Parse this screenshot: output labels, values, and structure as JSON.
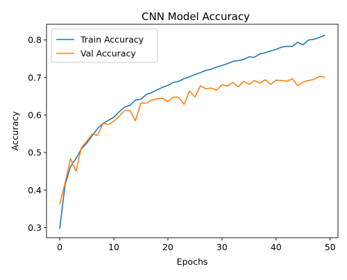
{
  "chart_data": {
    "type": "line",
    "title": "CNN Model Accuracy",
    "xlabel": "Epochs",
    "ylabel": "Accuracy",
    "xlim": [
      -2.45,
      51.45
    ],
    "ylim": [
      0.273,
      0.842
    ],
    "xticks": [
      0,
      10,
      20,
      30,
      40,
      50
    ],
    "yticks": [
      0.3,
      0.4,
      0.5,
      0.6,
      0.7,
      0.8
    ],
    "grid": false,
    "legend_position": "top-left",
    "x": [
      0,
      1,
      2,
      3,
      4,
      5,
      6,
      7,
      8,
      9,
      10,
      11,
      12,
      13,
      14,
      15,
      16,
      17,
      18,
      19,
      20,
      21,
      22,
      23,
      24,
      25,
      26,
      27,
      28,
      29,
      30,
      31,
      32,
      33,
      34,
      35,
      36,
      37,
      38,
      39,
      40,
      41,
      42,
      43,
      44,
      45,
      46,
      47,
      48,
      49
    ],
    "series": [
      {
        "name": "Train Accuracy",
        "color": "#1f77b4",
        "values": [
          0.298,
          0.415,
          0.463,
          0.484,
          0.51,
          0.525,
          0.545,
          0.564,
          0.578,
          0.586,
          0.594,
          0.609,
          0.621,
          0.626,
          0.64,
          0.642,
          0.655,
          0.66,
          0.667,
          0.674,
          0.679,
          0.687,
          0.69,
          0.697,
          0.702,
          0.708,
          0.713,
          0.719,
          0.722,
          0.728,
          0.732,
          0.737,
          0.743,
          0.745,
          0.748,
          0.755,
          0.754,
          0.763,
          0.766,
          0.771,
          0.775,
          0.781,
          0.783,
          0.783,
          0.794,
          0.787,
          0.8,
          0.802,
          0.807,
          0.813
        ]
      },
      {
        "name": "Val Accuracy",
        "color": "#ff7f0e",
        "values": [
          0.363,
          0.42,
          0.484,
          0.45,
          0.513,
          0.53,
          0.549,
          0.546,
          0.578,
          0.575,
          0.583,
          0.597,
          0.612,
          0.612,
          0.585,
          0.632,
          0.632,
          0.64,
          0.643,
          0.645,
          0.636,
          0.648,
          0.647,
          0.628,
          0.664,
          0.648,
          0.678,
          0.67,
          0.672,
          0.666,
          0.681,
          0.677,
          0.687,
          0.675,
          0.69,
          0.682,
          0.692,
          0.685,
          0.694,
          0.682,
          0.693,
          0.692,
          0.69,
          0.697,
          0.678,
          0.688,
          0.692,
          0.695,
          0.703,
          0.701
        ]
      }
    ]
  }
}
